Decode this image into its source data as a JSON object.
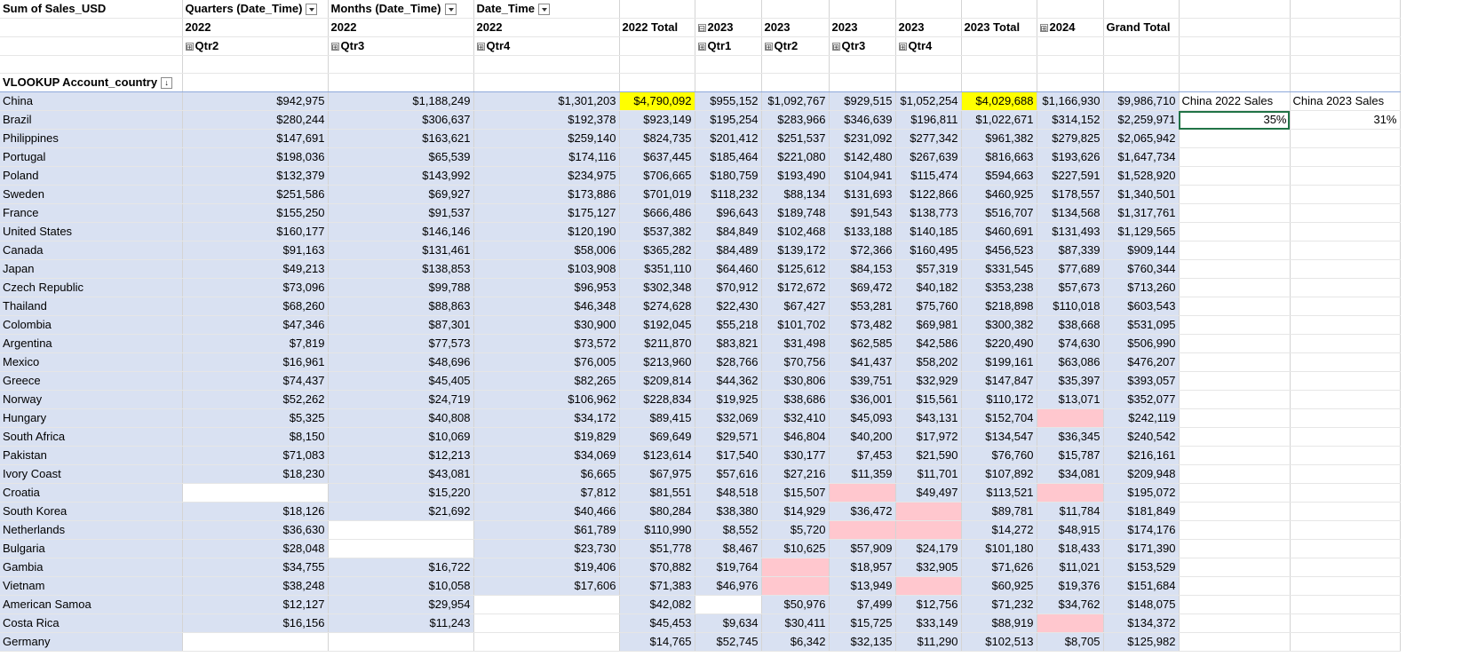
{
  "pivot": {
    "corner_label": "Sum of Sales_USD",
    "field_headers": [
      "Quarters (Date_Time)",
      "Months (Date_Time)",
      "Date_Time"
    ],
    "row_field_label": "VLOOKUP Account_country",
    "years": [
      "2022",
      "2022",
      "2022",
      "2022 Total",
      "2023",
      "2023",
      "2023",
      "2023",
      "2023 Total",
      "2024",
      "Grand Total"
    ],
    "quarters": [
      "Qtr2",
      "Qtr3",
      "Qtr4",
      "",
      "Qtr1",
      "Qtr2",
      "Qtr3",
      "Qtr4",
      "",
      "",
      ""
    ],
    "year_2023_toggle": "⊟",
    "year_2024_toggle": "⊞",
    "quarter_toggle": "⊞",
    "rows": [
      {
        "country": "China",
        "v": [
          "$942,975",
          "$1,188,249",
          "$1,301,203",
          "$4,790,092",
          "$955,152",
          "$1,092,767",
          "$929,515",
          "$1,052,254",
          "$4,029,688",
          "$1,166,930",
          "$9,986,710"
        ]
      },
      {
        "country": "Brazil",
        "v": [
          "$280,244",
          "$306,637",
          "$192,378",
          "$923,149",
          "$195,254",
          "$283,966",
          "$346,639",
          "$196,811",
          "$1,022,671",
          "$314,152",
          "$2,259,971"
        ]
      },
      {
        "country": "Philippines",
        "v": [
          "$147,691",
          "$163,621",
          "$259,140",
          "$824,735",
          "$201,412",
          "$251,537",
          "$231,092",
          "$277,342",
          "$961,382",
          "$279,825",
          "$2,065,942"
        ]
      },
      {
        "country": "Portugal",
        "v": [
          "$198,036",
          "$65,539",
          "$174,116",
          "$637,445",
          "$185,464",
          "$221,080",
          "$142,480",
          "$267,639",
          "$816,663",
          "$193,626",
          "$1,647,734"
        ]
      },
      {
        "country": "Poland",
        "v": [
          "$132,379",
          "$143,992",
          "$234,975",
          "$706,665",
          "$180,759",
          "$193,490",
          "$104,941",
          "$115,474",
          "$594,663",
          "$227,591",
          "$1,528,920"
        ]
      },
      {
        "country": "Sweden",
        "v": [
          "$251,586",
          "$69,927",
          "$173,886",
          "$701,019",
          "$118,232",
          "$88,134",
          "$131,693",
          "$122,866",
          "$460,925",
          "$178,557",
          "$1,340,501"
        ]
      },
      {
        "country": "France",
        "v": [
          "$155,250",
          "$91,537",
          "$175,127",
          "$666,486",
          "$96,643",
          "$189,748",
          "$91,543",
          "$138,773",
          "$516,707",
          "$134,568",
          "$1,317,761"
        ]
      },
      {
        "country": "United States",
        "v": [
          "$160,177",
          "$146,146",
          "$120,190",
          "$537,382",
          "$84,849",
          "$102,468",
          "$133,188",
          "$140,185",
          "$460,691",
          "$131,493",
          "$1,129,565"
        ]
      },
      {
        "country": "Canada",
        "v": [
          "$91,163",
          "$131,461",
          "$58,006",
          "$365,282",
          "$84,489",
          "$139,172",
          "$72,366",
          "$160,495",
          "$456,523",
          "$87,339",
          "$909,144"
        ]
      },
      {
        "country": "Japan",
        "v": [
          "$49,213",
          "$138,853",
          "$103,908",
          "$351,110",
          "$64,460",
          "$125,612",
          "$84,153",
          "$57,319",
          "$331,545",
          "$77,689",
          "$760,344"
        ]
      },
      {
        "country": "Czech Republic",
        "v": [
          "$73,096",
          "$99,788",
          "$96,953",
          "$302,348",
          "$70,912",
          "$172,672",
          "$69,472",
          "$40,182",
          "$353,238",
          "$57,673",
          "$713,260"
        ]
      },
      {
        "country": "Thailand",
        "v": [
          "$68,260",
          "$88,863",
          "$46,348",
          "$274,628",
          "$22,430",
          "$67,427",
          "$53,281",
          "$75,760",
          "$218,898",
          "$110,018",
          "$603,543"
        ]
      },
      {
        "country": "Colombia",
        "v": [
          "$47,346",
          "$87,301",
          "$30,900",
          "$192,045",
          "$55,218",
          "$101,702",
          "$73,482",
          "$69,981",
          "$300,382",
          "$38,668",
          "$531,095"
        ]
      },
      {
        "country": "Argentina",
        "v": [
          "$7,819",
          "$77,573",
          "$73,572",
          "$211,870",
          "$83,821",
          "$31,498",
          "$62,585",
          "$42,586",
          "$220,490",
          "$74,630",
          "$506,990"
        ]
      },
      {
        "country": "Mexico",
        "v": [
          "$16,961",
          "$48,696",
          "$76,005",
          "$213,960",
          "$28,766",
          "$70,756",
          "$41,437",
          "$58,202",
          "$199,161",
          "$63,086",
          "$476,207"
        ]
      },
      {
        "country": "Greece",
        "v": [
          "$74,437",
          "$45,405",
          "$82,265",
          "$209,814",
          "$44,362",
          "$30,806",
          "$39,751",
          "$32,929",
          "$147,847",
          "$35,397",
          "$393,057"
        ]
      },
      {
        "country": "Norway",
        "v": [
          "$52,262",
          "$24,719",
          "$106,962",
          "$228,834",
          "$19,925",
          "$38,686",
          "$36,001",
          "$15,561",
          "$110,172",
          "$13,071",
          "$352,077"
        ]
      },
      {
        "country": "Hungary",
        "v": [
          "$5,325",
          "$40,808",
          "$34,172",
          "$89,415",
          "$32,069",
          "$32,410",
          "$45,093",
          "$43,131",
          "$152,704",
          "",
          "$242,119"
        ]
      },
      {
        "country": "South Africa",
        "v": [
          "$8,150",
          "$10,069",
          "$19,829",
          "$69,649",
          "$29,571",
          "$46,804",
          "$40,200",
          "$17,972",
          "$134,547",
          "$36,345",
          "$240,542"
        ]
      },
      {
        "country": "Pakistan",
        "v": [
          "$71,083",
          "$12,213",
          "$34,069",
          "$123,614",
          "$17,540",
          "$30,177",
          "$7,453",
          "$21,590",
          "$76,760",
          "$15,787",
          "$216,161"
        ]
      },
      {
        "country": "Ivory Coast",
        "v": [
          "$18,230",
          "$43,081",
          "$6,665",
          "$67,975",
          "$57,616",
          "$27,216",
          "$11,359",
          "$11,701",
          "$107,892",
          "$34,081",
          "$209,948"
        ]
      },
      {
        "country": "Croatia",
        "v": [
          "",
          "$15,220",
          "$7,812",
          "$81,551",
          "$48,518",
          "$15,507",
          "",
          "$49,497",
          "$113,521",
          "",
          "$195,072"
        ]
      },
      {
        "country": "South Korea",
        "v": [
          "$18,126",
          "$21,692",
          "$40,466",
          "$80,284",
          "$38,380",
          "$14,929",
          "$36,472",
          "",
          "$89,781",
          "$11,784",
          "$181,849"
        ]
      },
      {
        "country": "Netherlands",
        "v": [
          "$36,630",
          "",
          "$61,789",
          "$110,990",
          "$8,552",
          "$5,720",
          "",
          "",
          "$14,272",
          "$48,915",
          "$174,176"
        ]
      },
      {
        "country": "Bulgaria",
        "v": [
          "$28,048",
          "",
          "$23,730",
          "$51,778",
          "$8,467",
          "$10,625",
          "$57,909",
          "$24,179",
          "$101,180",
          "$18,433",
          "$171,390"
        ]
      },
      {
        "country": "Gambia",
        "v": [
          "$34,755",
          "$16,722",
          "$19,406",
          "$70,882",
          "$19,764",
          "",
          "$18,957",
          "$32,905",
          "$71,626",
          "$11,021",
          "$153,529"
        ]
      },
      {
        "country": "Vietnam",
        "v": [
          "$38,248",
          "$10,058",
          "$17,606",
          "$71,383",
          "$46,976",
          "",
          "$13,949",
          "",
          "$60,925",
          "$19,376",
          "$151,684"
        ]
      },
      {
        "country": "American Samoa",
        "v": [
          "$12,127",
          "$29,954",
          "",
          "$42,082",
          "",
          "$50,976",
          "$7,499",
          "$12,756",
          "$71,232",
          "$34,762",
          "$148,075"
        ]
      },
      {
        "country": "Costa Rica",
        "v": [
          "$16,156",
          "$11,243",
          "",
          "$45,453",
          "$9,634",
          "$30,411",
          "$15,725",
          "$33,149",
          "$88,919",
          "",
          "$134,372"
        ]
      },
      {
        "country": "Germany",
        "v": [
          "",
          "",
          "",
          "$14,765",
          "$52,745",
          "$6,342",
          "$32,135",
          "$11,290",
          "$102,513",
          "$8,705",
          "$125,982"
        ]
      }
    ],
    "pink_cells": [
      [
        17,
        9
      ],
      [
        21,
        6
      ],
      [
        21,
        9
      ],
      [
        22,
        7
      ],
      [
        23,
        6
      ],
      [
        23,
        7
      ],
      [
        25,
        5
      ],
      [
        26,
        5
      ],
      [
        26,
        7
      ],
      [
        28,
        9
      ]
    ]
  },
  "side": {
    "label1": "China 2022 Sales",
    "label2": "China 2023 Sales",
    "value1": "35%",
    "value2": "31%"
  },
  "colors": {
    "band": "#d9e1f2",
    "highlight": "#ffff00",
    "pink": "#ffc7ce",
    "selection": "#217346"
  }
}
